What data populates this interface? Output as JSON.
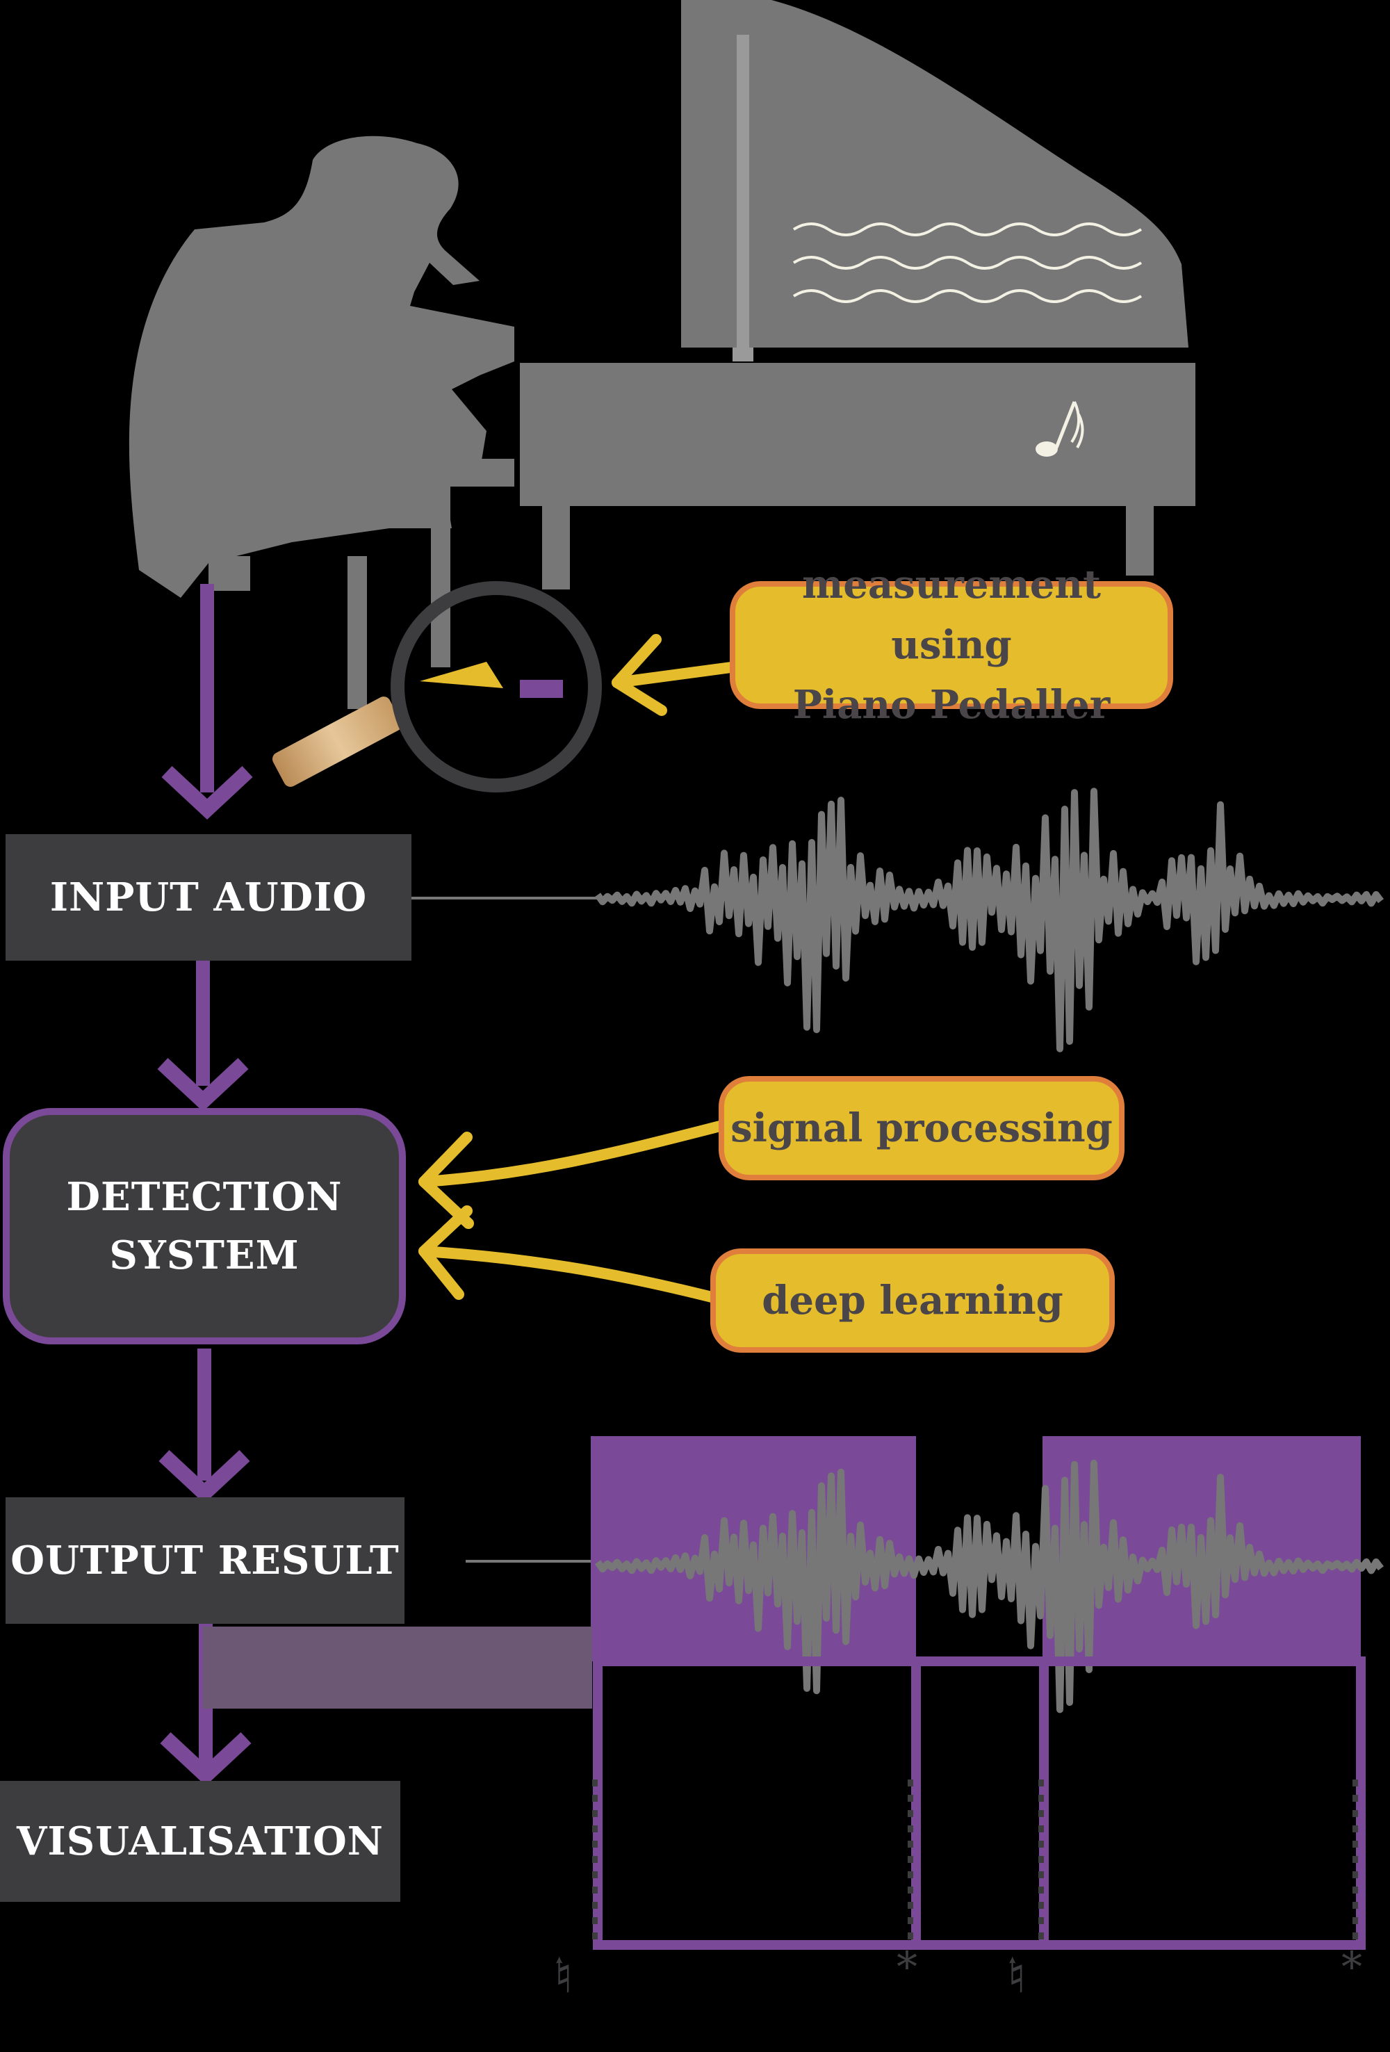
{
  "flow": {
    "input_audio": "INPUT AUDIO",
    "detection_line1": "DETECTION",
    "detection_line2": "SYSTEM",
    "output_result": "OUTPUT RESULT",
    "visualisation": "VISUALISATION"
  },
  "callouts": {
    "pedal_line1": "measurement using",
    "pedal_line2": "Piano Pedaller",
    "signal_processing": "signal processing",
    "deep_learning": "deep learning"
  },
  "icons": [
    "pianist-silhouette-icon",
    "grand-piano-icon",
    "music-note-icon",
    "magnifying-glass-icon",
    "sustain-pedal-icon",
    "waveform-icon",
    "pedal-on-icon",
    "pedal-off-icon"
  ],
  "colors": {
    "background": "#000000",
    "box": "#3d3c3f",
    "purple": "#7a4a98",
    "yellow": "#e5bc2b",
    "orange": "#e07f3c",
    "grey": "#777777",
    "callout_text": "#4a4549"
  }
}
